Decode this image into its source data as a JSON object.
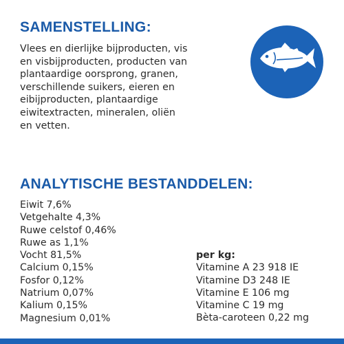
{
  "composition": {
    "title": "SAMENSTELLING:",
    "lines": [
      "Vlees en dierlijke bijproducten, vis",
      "en visbijproducten, producten van",
      "plantaardige oorsprong, granen,",
      "verschillende suikers, eieren en",
      "eibijproducten, plantaardige",
      "eiwitextracten, mineralen, oliën",
      "en vetten."
    ]
  },
  "icon": {
    "name": "fish-icon",
    "background": "#1c63b7"
  },
  "analysis": {
    "title": "ANALYTISCHE BESTANDDELEN:",
    "items": [
      "Eiwit 7,6%",
      "Vetgehalte 4,3%",
      "Ruwe celstof 0,46%",
      "Ruwe as 1,1%",
      "Vocht 81,5%",
      "Calcium 0,15%",
      "Fosfor 0,12%",
      "Natrium 0,07%",
      "Kalium 0,15%",
      "Magnesium 0,01%"
    ],
    "per_kg": {
      "label": "per kg:",
      "items": [
        "Vitamine A 23 918 IE",
        "Vitamine D3 248 IE",
        "Vitamine E 106 mg",
        "Vitamine C 19 mg",
        "Bèta-caroteen 0,22 mg"
      ]
    }
  },
  "colors": {
    "heading": "#1a5aa8",
    "accent": "#1c63b7",
    "text": "#2b2b2b"
  }
}
